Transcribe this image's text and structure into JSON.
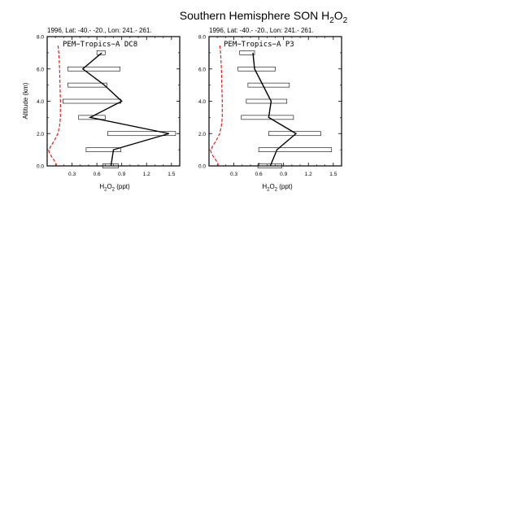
{
  "figure": {
    "title_main": "Southern Hemisphere SON H",
    "title_sub1": "2",
    "title_mid": "O",
    "title_sub2": "2"
  },
  "chart_data": [
    {
      "type": "line",
      "header": "1996, Lat: -40.- -20., Lon: 241.- 261.",
      "campaign_label": "PEM−Tropics−A DC8",
      "xlabel_main": "H",
      "xlabel_sub1": "2",
      "xlabel_mid": "O",
      "xlabel_sub2": "2",
      "xlabel_unit": " (ppt)",
      "ylabel": "Altitude (km)",
      "xlim": [
        0,
        1.6
      ],
      "ylim": [
        0,
        8
      ],
      "xticks": [
        0.3,
        0.6,
        0.9,
        1.2,
        1.5
      ],
      "xtick_labels": [
        "0.3",
        "0.6",
        "0.9",
        "1.2",
        "1.5"
      ],
      "yticks": [
        0,
        2,
        4,
        6,
        8
      ],
      "ytick_labels": [
        "0.0",
        "2.0",
        "4.0",
        "6.0",
        "8.0"
      ],
      "observed": {
        "color": "#000000",
        "points": [
          {
            "alt": 0,
            "mean": 0.77,
            "low": 0.67,
            "high": 0.86
          },
          {
            "alt": 1,
            "mean": 0.8,
            "low": 0.47,
            "high": 0.89
          },
          {
            "alt": 2,
            "mean": 1.47,
            "low": 0.73,
            "high": 1.55
          },
          {
            "alt": 3,
            "mean": 0.52,
            "low": 0.38,
            "high": 0.7
          },
          {
            "alt": 4,
            "mean": 0.9,
            "low": 0.19,
            "high": 0.89
          },
          {
            "alt": 5,
            "mean": 0.69,
            "low": 0.25,
            "high": 0.72
          },
          {
            "alt": 6,
            "mean": 0.43,
            "low": 0.25,
            "high": 0.88
          },
          {
            "alt": 7,
            "mean": 0.66,
            "low": 0.6,
            "high": 0.7
          }
        ]
      },
      "model": {
        "color": "#e0201b",
        "alt": [
          0,
          0.3,
          0.6,
          0.9,
          1.2,
          1.5,
          2,
          2.5,
          3,
          4,
          5,
          6,
          7,
          7.5
        ],
        "values": [
          0.12,
          0.09,
          0.05,
          0.02,
          0.04,
          0.08,
          0.13,
          0.15,
          0.16,
          0.16,
          0.155,
          0.15,
          0.14,
          0.13
        ]
      }
    },
    {
      "type": "line",
      "header": "1996, Lat: -40.- -20., Lon: 241.- 261.",
      "campaign_label": "PEM−Tropics−A P3",
      "xlabel_main": "H",
      "xlabel_sub1": "2",
      "xlabel_mid": "O",
      "xlabel_sub2": "2",
      "xlabel_unit": " (ppt)",
      "ylabel": "",
      "xlim": [
        0,
        1.6
      ],
      "ylim": [
        0,
        8
      ],
      "xticks": [
        0.3,
        0.6,
        0.9,
        1.2,
        1.5
      ],
      "xtick_labels": [
        "0.3",
        "0.6",
        "0.9",
        "1.2",
        "1.5"
      ],
      "yticks": [
        0,
        2,
        4,
        6,
        8
      ],
      "ytick_labels": [
        "0.0",
        "2.0",
        "4.0",
        "6.0",
        "8.0"
      ],
      "observed": {
        "color": "#000000",
        "points": [
          {
            "alt": 0,
            "mean": 0.74,
            "low": 0.59,
            "high": 0.88
          },
          {
            "alt": 1,
            "mean": 0.82,
            "low": 0.6,
            "high": 1.48
          },
          {
            "alt": 2,
            "mean": 1.05,
            "low": 0.72,
            "high": 1.35
          },
          {
            "alt": 3,
            "mean": 0.72,
            "low": 0.39,
            "high": 1.02
          },
          {
            "alt": 4,
            "mean": 0.75,
            "low": 0.45,
            "high": 0.94
          },
          {
            "alt": 5,
            "mean": 0.65,
            "low": 0.47,
            "high": 0.97
          },
          {
            "alt": 6,
            "mean": 0.55,
            "low": 0.35,
            "high": 0.8
          },
          {
            "alt": 7,
            "mean": 0.53,
            "low": 0.37,
            "high": 0.55
          }
        ]
      },
      "model": {
        "color": "#e0201b",
        "alt": [
          0,
          0.3,
          0.6,
          0.9,
          1.2,
          1.5,
          2,
          2.5,
          3,
          4,
          5,
          6,
          7,
          7.5
        ],
        "values": [
          0.12,
          0.09,
          0.05,
          0.02,
          0.04,
          0.08,
          0.13,
          0.15,
          0.16,
          0.16,
          0.155,
          0.15,
          0.14,
          0.13
        ]
      }
    }
  ]
}
